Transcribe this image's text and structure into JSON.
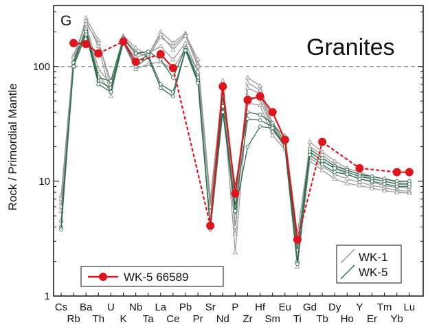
{
  "chart_data": {
    "type": "line",
    "panel_label": "G",
    "rock_type": "Granites",
    "ylabel": "Rock / Primordial Mantle",
    "xlabel": "",
    "yscale": "log",
    "ylim": [
      1,
      340
    ],
    "yticks": [
      1,
      10,
      100
    ],
    "ytick_labels": [
      "1",
      "10",
      "100"
    ],
    "reference_line": {
      "y": 100,
      "style": "dashed",
      "color": "#888888"
    },
    "categories": [
      "Cs",
      "Rb",
      "Ba",
      "Th",
      "U",
      "K",
      "Nb",
      "Ta",
      "La",
      "Ce",
      "Pb",
      "Pr",
      "Sr",
      "Nd",
      "P",
      "Zr",
      "Hf",
      "Sm",
      "Eu",
      "Ti",
      "Gd",
      "Tb",
      "Dy",
      "Ho",
      "Y",
      "Er",
      "Tm",
      "Yb",
      "Lu"
    ],
    "category_rows": [
      0,
      1,
      0,
      1,
      0,
      1,
      0,
      1,
      0,
      1,
      0,
      1,
      0,
      1,
      0,
      1,
      0,
      1,
      0,
      1,
      0,
      1,
      0,
      1,
      0,
      1,
      0,
      1,
      0
    ],
    "legend": [
      {
        "label": "WK-1",
        "color": "#9a9a9a"
      },
      {
        "label": "WK-5",
        "color": "#2f6e4e"
      },
      {
        "label": "WK-5 66589",
        "color": "#e0141c"
      }
    ],
    "series": [
      {
        "name": "WK-1",
        "group": "WK-1",
        "marker": "triangle",
        "values": [
          6.5,
          105,
          265,
          170,
          65,
          185,
          145,
          125,
          200,
          160,
          195,
          105,
          6,
          75,
          3.5,
          80,
          68,
          32,
          24,
          2.5,
          22,
          18,
          15,
          13,
          12,
          11,
          10.5,
          9.8,
          10
        ]
      },
      {
        "name": "WK-1",
        "group": "WK-1",
        "marker": "triangle",
        "values": [
          7.5,
          125,
          240,
          160,
          75,
          180,
          135,
          120,
          180,
          150,
          190,
          115,
          7,
          68,
          5,
          72,
          62,
          30,
          25,
          3.5,
          20,
          17,
          14,
          12.5,
          11.5,
          10.5,
          10,
          9.4,
          9.3
        ]
      },
      {
        "name": "WK-1",
        "group": "WK-1",
        "marker": "triangle",
        "values": [
          5.5,
          110,
          250,
          150,
          55,
          175,
          130,
          125,
          190,
          140,
          185,
          100,
          5.5,
          70,
          4,
          65,
          58,
          28,
          20,
          2,
          18,
          15,
          13,
          11.5,
          10.5,
          9.8,
          9.2,
          8.8,
          8.7
        ]
      },
      {
        "name": "WK-1",
        "group": "WK-1",
        "marker": "triangle",
        "values": [
          7,
          120,
          235,
          95,
          70,
          165,
          120,
          130,
          150,
          115,
          160,
          90,
          6.5,
          60,
          6,
          55,
          52,
          27,
          22,
          3,
          16,
          13.5,
          11.5,
          10.5,
          9.8,
          9.2,
          8.8,
          8.3,
          8.2
        ]
      },
      {
        "name": "WK-1",
        "group": "WK-1",
        "marker": "triangle",
        "values": [
          6,
          100,
          220,
          85,
          60,
          160,
          95,
          105,
          110,
          95,
          145,
          90,
          6,
          58,
          2.4,
          48,
          46,
          25,
          19,
          1.8,
          15,
          12.5,
          10.5,
          9.6,
          9.2,
          8.7,
          8.3,
          8,
          7.9
        ]
      },
      {
        "name": "WK-5",
        "group": "WK-5",
        "marker": "circle",
        "values": [
          4.5,
          110,
          210,
          80,
          75,
          175,
          130,
          135,
          115,
          80,
          145,
          80,
          4,
          55,
          9,
          40,
          38,
          32,
          22,
          2.5,
          19,
          16,
          13.5,
          12.5,
          11.5,
          11,
          10.5,
          10,
          10
        ]
      },
      {
        "name": "WK-5",
        "group": "WK-5",
        "marker": "circle",
        "values": [
          4,
          108,
          200,
          75,
          65,
          170,
          110,
          125,
          70,
          60,
          140,
          75,
          4,
          45,
          6,
          35,
          34,
          30,
          21,
          2,
          18,
          15,
          13,
          12,
          11,
          10.5,
          10,
          9.5,
          9.5
        ]
      },
      {
        "name": "WK-5",
        "group": "WK-5",
        "marker": "circle",
        "values": [
          3.8,
          100,
          190,
          70,
          60,
          165,
          100,
          120,
          65,
          55,
          138,
          72,
          3.8,
          40,
          5.5,
          20,
          30,
          29,
          20,
          1.9,
          17,
          14,
          12,
          11.5,
          10.5,
          10,
          9.5,
          9,
          9
        ]
      },
      {
        "name": "WK-5 66589",
        "group": "WK-5 66589",
        "marker": "dot",
        "values": [
          null,
          160,
          157,
          130,
          null,
          165,
          110,
          null,
          128,
          97,
          null,
          null,
          4.1,
          67,
          7.8,
          51,
          55,
          40,
          23,
          3.1,
          null,
          22,
          null,
          null,
          13,
          null,
          null,
          12,
          12
        ]
      }
    ]
  }
}
